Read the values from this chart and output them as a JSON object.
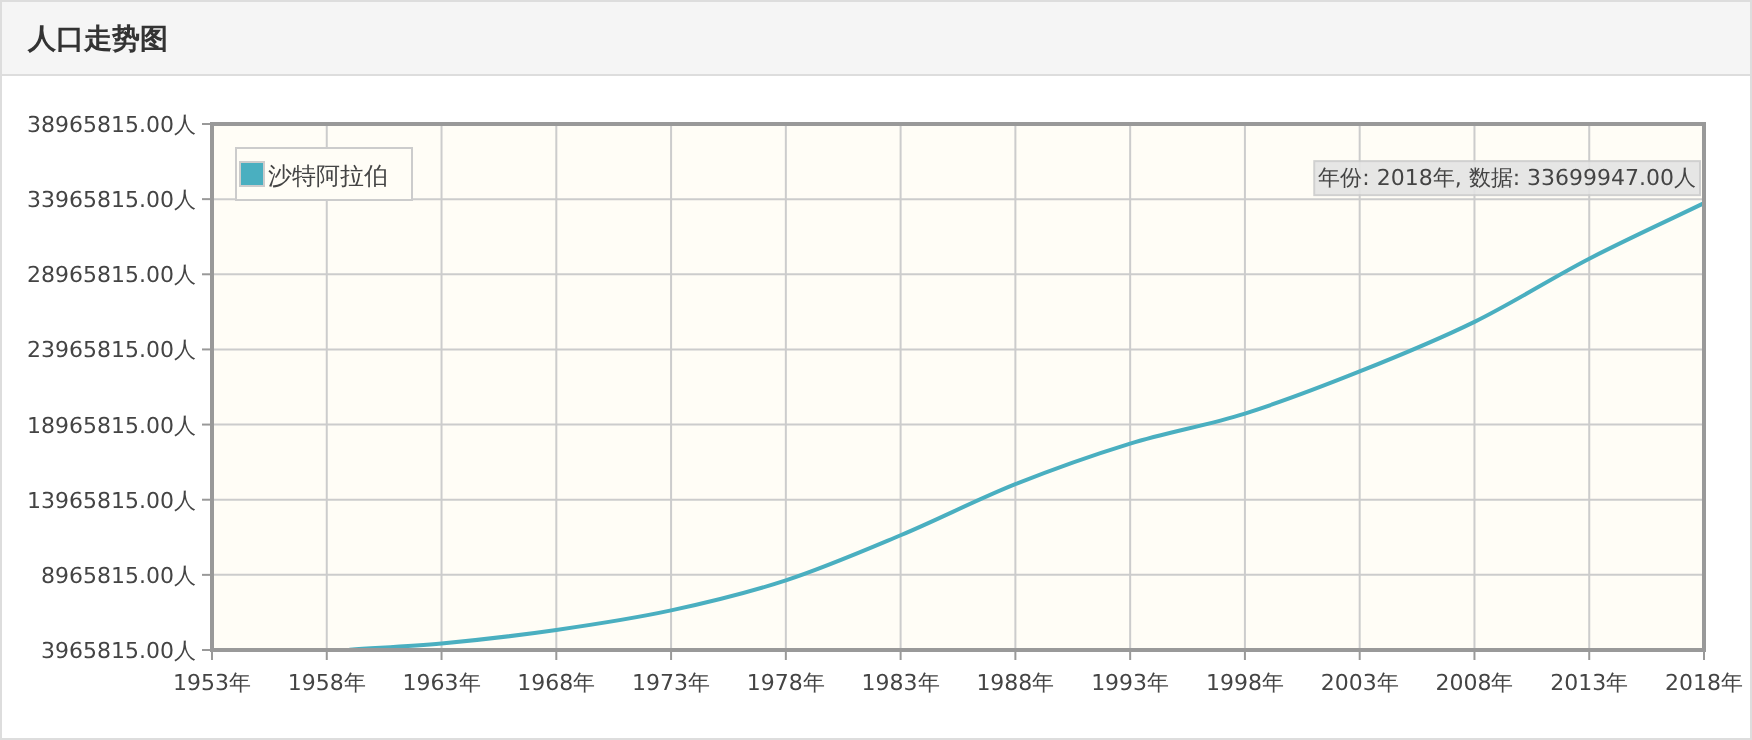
{
  "chart_data": {
    "type": "line",
    "title": "人口走势图",
    "x": [
      1959,
      1963,
      1968,
      1973,
      1978,
      1983,
      1988,
      1993,
      1998,
      2003,
      2008,
      2013,
      2018
    ],
    "series": [
      {
        "name": "沙特阿拉伯",
        "color": "#4aafc0",
        "values": [
          3990000,
          4400000,
          5300000,
          6600000,
          8600000,
          11600000,
          15000000,
          17700000,
          19700000,
          22500000,
          25800000,
          30000000,
          33699947
        ]
      }
    ],
    "xlim": [
      1953,
      2018
    ],
    "xticks": [
      {
        "value": 1953,
        "label": "1953年"
      },
      {
        "value": 1958,
        "label": "1958年"
      },
      {
        "value": 1963,
        "label": "1963年"
      },
      {
        "value": 1968,
        "label": "1968年"
      },
      {
        "value": 1973,
        "label": "1973年"
      },
      {
        "value": 1978,
        "label": "1978年"
      },
      {
        "value": 1983,
        "label": "1983年"
      },
      {
        "value": 1988,
        "label": "1988年"
      },
      {
        "value": 1993,
        "label": "1993年"
      },
      {
        "value": 1998,
        "label": "1998年"
      },
      {
        "value": 2003,
        "label": "2003年"
      },
      {
        "value": 2008,
        "label": "2008年"
      },
      {
        "value": 2013,
        "label": "2013年"
      },
      {
        "value": 2018,
        "label": "2018年"
      }
    ],
    "ylim": [
      3965815,
      38965815
    ],
    "yticks": [
      {
        "value": 3965815,
        "label": "3965815.00人"
      },
      {
        "value": 8965815,
        "label": "8965815.00人"
      },
      {
        "value": 13965815,
        "label": "13965815.00人"
      },
      {
        "value": 18965815,
        "label": "18965815.00人"
      },
      {
        "value": 23965815,
        "label": "23965815.00人"
      },
      {
        "value": 28965815,
        "label": "28965815.00人"
      },
      {
        "value": 33965815,
        "label": "33965815.00人"
      },
      {
        "value": 38965815,
        "label": "38965815.00人"
      }
    ],
    "annotations": [
      {
        "text": "年份: 2018年, 数据: 33699947.00人",
        "x": 2018,
        "y": 33699947
      }
    ],
    "grid": true,
    "legend": "top left"
  }
}
